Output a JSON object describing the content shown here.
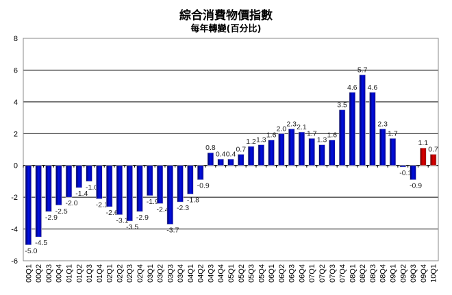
{
  "chart_data": {
    "type": "bar",
    "title": "綜合消費物價指數",
    "subtitle": "每年轉變(百分比)",
    "xlabel": "",
    "ylabel": "",
    "ylim": [
      -6,
      8
    ],
    "yticks": [
      -6,
      -4,
      -2,
      0,
      2,
      4,
      6,
      8
    ],
    "grid": true,
    "categories": [
      "00Q1",
      "00Q2",
      "00Q3",
      "00Q4",
      "01Q1",
      "01Q2",
      "01Q3",
      "01Q4",
      "02Q1",
      "02Q2",
      "02Q3",
      "02Q4",
      "03Q1",
      "03Q2",
      "03Q3",
      "03Q4",
      "04Q1",
      "04Q2",
      "04Q3",
      "04Q4",
      "05Q1",
      "05Q2",
      "05Q3",
      "05Q4",
      "06Q1",
      "06Q2",
      "06Q3",
      "06Q4",
      "07Q1",
      "07Q2",
      "07Q3",
      "07Q4",
      "08Q1",
      "08Q2",
      "08Q3",
      "08Q4",
      "09Q1",
      "09Q2",
      "09Q3",
      "09Q4",
      "10Q1"
    ],
    "values": [
      -5.0,
      -4.5,
      -2.9,
      -2.5,
      -2.0,
      -1.4,
      -1.0,
      -2.1,
      -2.6,
      -3.1,
      -3.5,
      -2.9,
      -1.9,
      -2.4,
      -3.7,
      -2.3,
      -1.8,
      -0.9,
      0.8,
      0.4,
      0.4,
      0.7,
      1.2,
      1.3,
      1.6,
      2.0,
      2.3,
      2.1,
      1.7,
      1.3,
      1.6,
      3.5,
      4.6,
      5.7,
      4.6,
      2.3,
      1.7,
      -0.1,
      -0.9,
      1.1,
      0.7
    ],
    "colors": {
      "default": "#0000cc",
      "highlight": "#cc0000"
    },
    "highlighted_categories": [
      "09Q4",
      "10Q1"
    ]
  }
}
